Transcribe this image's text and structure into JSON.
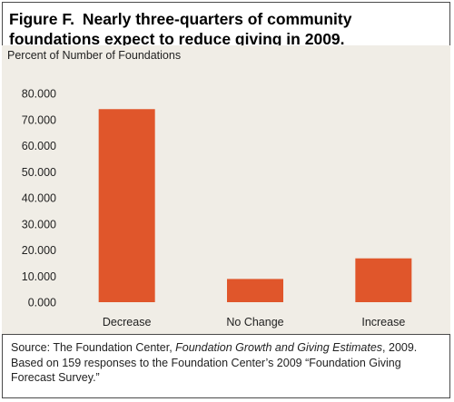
{
  "figure": {
    "label": "Figure F.",
    "title": "Nearly three-quarters of community foundations expect to reduce giving in 2009."
  },
  "chart_data": {
    "type": "bar",
    "title": "Nearly three-quarters of community foundations expect to reduce giving in 2009.",
    "ylabel": "Percent of Number of Foundations",
    "xlabel": "",
    "categories": [
      "Decrease",
      "No Change",
      "Increase"
    ],
    "values": [
      74.0,
      8.9,
      16.8
    ],
    "ylim": [
      0,
      80
    ],
    "yticks": [
      0,
      10,
      20,
      30,
      40,
      50,
      60,
      70,
      80
    ],
    "ytick_labels": [
      "0.000",
      "10.000",
      "20.000",
      "30.000",
      "40.000",
      "50.000",
      "60.000",
      "70.000",
      "80.000"
    ],
    "bar_color": "#e0562b",
    "background_color": "#f0ede6",
    "grid": false,
    "legend": "none"
  },
  "source": {
    "prefix": "Source: The Foundation Center, ",
    "publication": "Foundation Growth and Giving Estimates",
    "suffix": ", 2009. Based on 159 responses to the Foundation Center’s 2009 “Foundation Giving Forecast Survey.”"
  }
}
